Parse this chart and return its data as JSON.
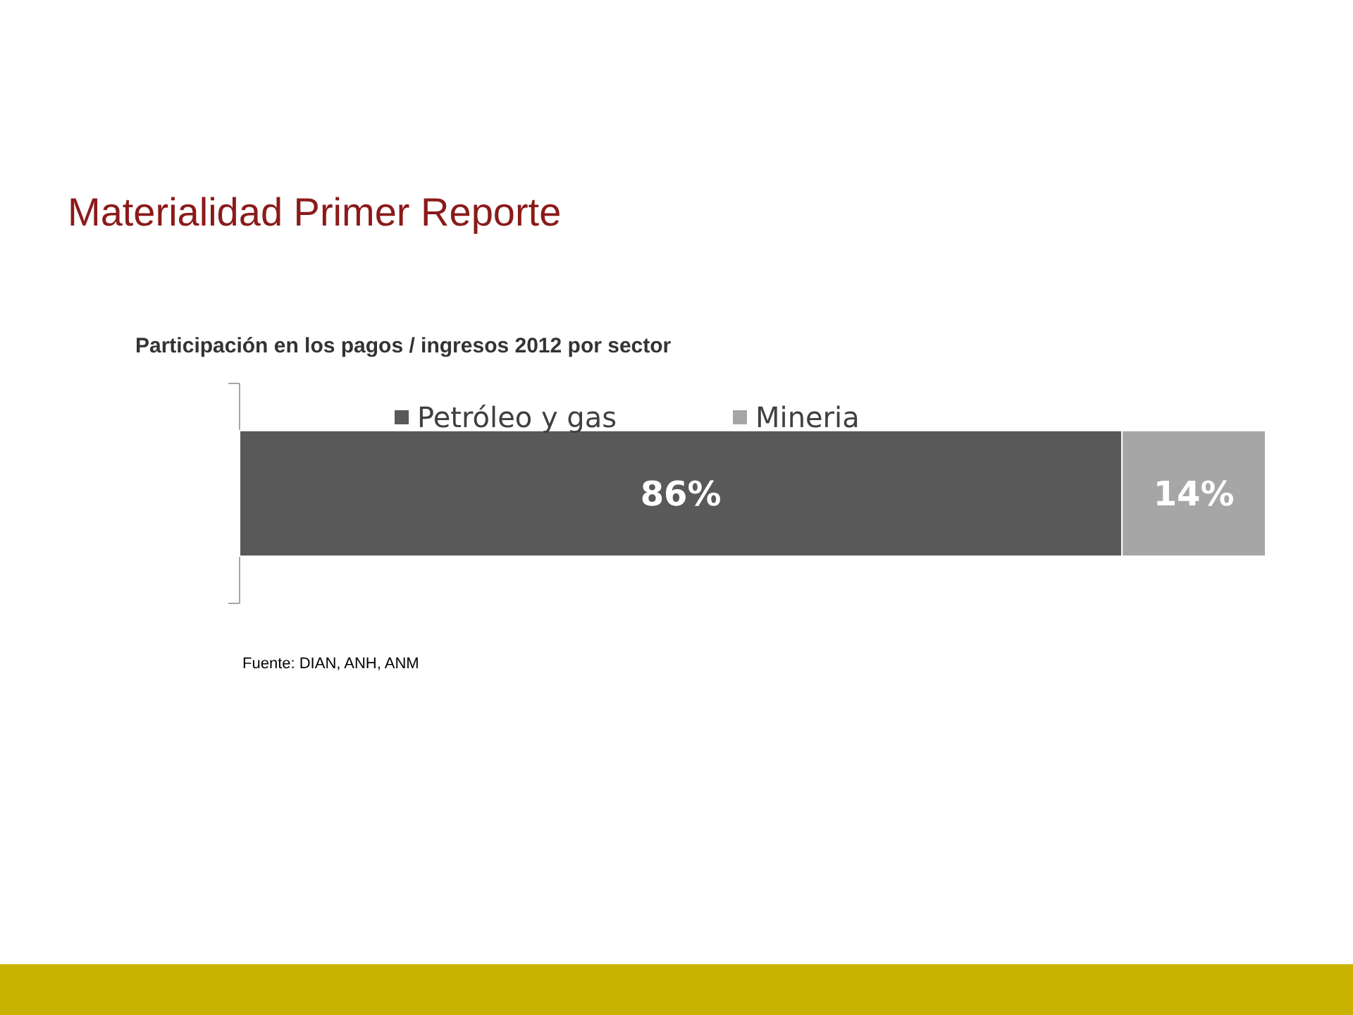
{
  "chart_data": {
    "type": "bar",
    "orientation": "horizontal",
    "stacked": true,
    "title": "Materialidad Primer Reporte",
    "subtitle": "Participación en los pagos / ingresos 2012 por sector",
    "categories": [
      null
    ],
    "series": [
      {
        "name": "Petróleo y gas",
        "color": "#595959",
        "values": [
          86
        ],
        "value_labels": [
          "86%"
        ]
      },
      {
        "name": "Mineria",
        "color": "#a6a6a6",
        "values": [
          14
        ],
        "value_labels": [
          "14%"
        ]
      }
    ],
    "legend": "top",
    "annotations": [
      "Fuente: DIAN, ANH, ANM"
    ]
  }
}
